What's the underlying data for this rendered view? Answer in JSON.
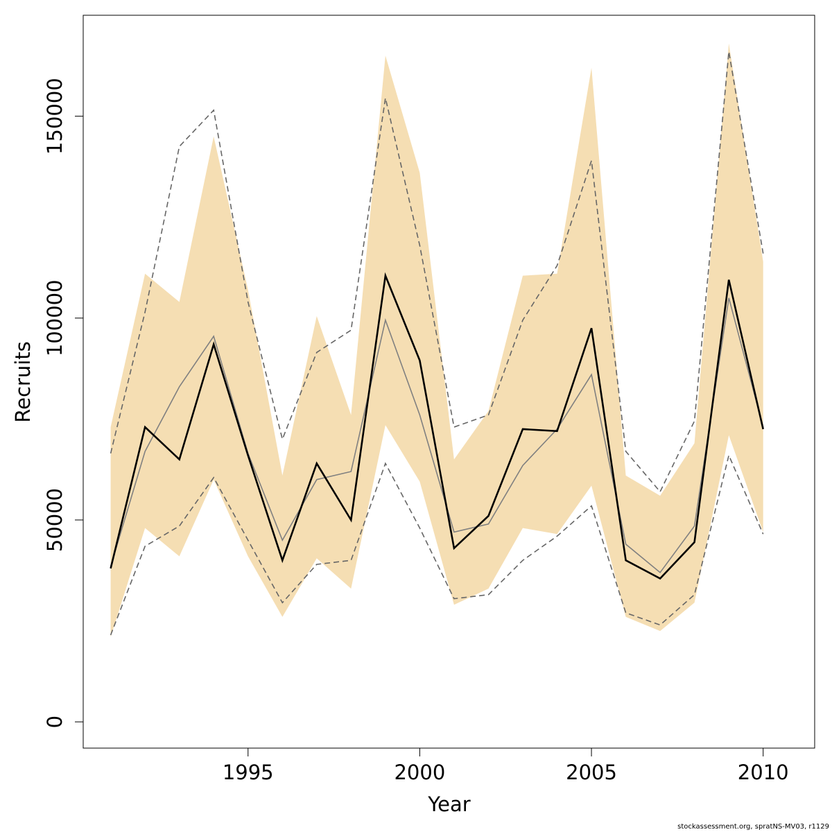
{
  "chart_data": {
    "type": "line",
    "xlabel": "Year",
    "ylabel": "Recruits",
    "xlim": [
      1990.2,
      2011.5
    ],
    "ylim": [
      -6500,
      175000
    ],
    "x_ticks": [
      1995,
      2000,
      2005,
      2010
    ],
    "y_ticks": [
      0,
      50000,
      100000,
      150000
    ],
    "x": [
      1991,
      1992,
      1993,
      1994,
      1995,
      1996,
      1997,
      1998,
      1999,
      2000,
      2001,
      2002,
      2003,
      2004,
      2005,
      2006,
      2007,
      2008,
      2009,
      2010
    ],
    "band": {
      "fill": "#f5deb3",
      "upper": [
        73000,
        111000,
        104000,
        145000,
        107000,
        61000,
        100500,
        76000,
        165000,
        136000,
        65000,
        77000,
        110500,
        111000,
        162000,
        61000,
        56000,
        69000,
        168000,
        114000
      ],
      "lower": [
        21000,
        48000,
        41000,
        60000,
        41000,
        26000,
        40500,
        33000,
        73500,
        59500,
        29000,
        33000,
        48000,
        46500,
        58500,
        26000,
        22500,
        29500,
        71000,
        47000
      ]
    },
    "series": [
      {
        "style": "solid-black",
        "color": "#000000",
        "values": [
          38000,
          73000,
          65000,
          93500,
          66000,
          40000,
          64000,
          50000,
          110500,
          89500,
          43000,
          51000,
          72500,
          72000,
          97500,
          40000,
          35500,
          44500,
          109500,
          72500
        ]
      },
      {
        "style": "solid-grey",
        "color": "#808080",
        "values": [
          38500,
          67000,
          83000,
          95500,
          66500,
          45000,
          60000,
          62000,
          99500,
          76000,
          47000,
          49000,
          63500,
          72500,
          86000,
          44000,
          37000,
          48500,
          105000,
          73000
        ]
      },
      {
        "style": "dashed-upper",
        "color": "#666666",
        "values": [
          66500,
          101500,
          142500,
          151500,
          104000,
          70000,
          91500,
          97000,
          154500,
          118000,
          73000,
          76000,
          99500,
          113000,
          139000,
          67000,
          57000,
          74500,
          166000,
          116000
        ]
      },
      {
        "style": "dashed-lower",
        "color": "#666666",
        "values": [
          21500,
          43500,
          48500,
          60500,
          45000,
          29500,
          39000,
          40000,
          64000,
          48000,
          30500,
          31500,
          40000,
          46000,
          53500,
          27000,
          24000,
          31500,
          66000,
          46500
        ]
      }
    ]
  },
  "credit": "stockassessment.org, spratNS-MV03, r1129"
}
